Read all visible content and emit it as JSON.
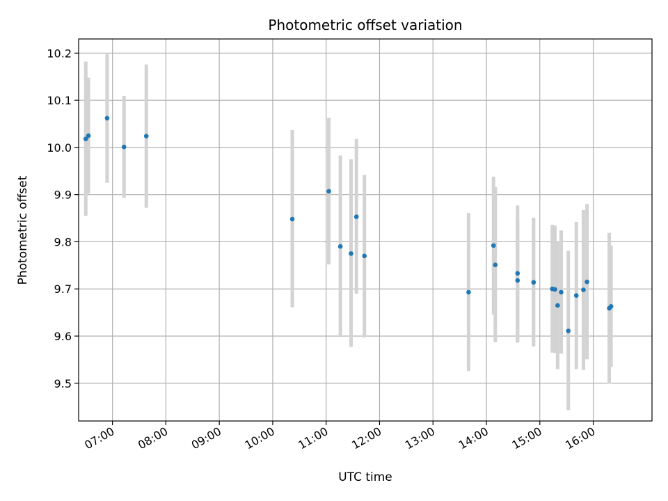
{
  "chart_data": {
    "type": "scatter",
    "title": "Photometric offset variation",
    "xlabel": "UTC time",
    "ylabel": "Photometric offset",
    "grid": true,
    "legend": "none",
    "x_tick_labels": [
      "07:00",
      "08:00",
      "09:00",
      "10:00",
      "11:00",
      "12:00",
      "13:00",
      "14:00",
      "15:00",
      "16:00"
    ],
    "y_tick_labels": [
      "9.5",
      "9.6",
      "9.7",
      "9.8",
      "9.9",
      "10.0",
      "10.1",
      "10.2"
    ],
    "xlim": [
      "06:22",
      "17:06"
    ],
    "ylim": [
      9.42,
      10.23
    ],
    "colors": {
      "point": "#1f77b4",
      "errorbar": "#d3d3d3",
      "grid": "#b0b0b0"
    },
    "points": [
      {
        "x": "06:30",
        "y": 10.018,
        "yerr_low": 9.855,
        "yerr_high": 10.182
      },
      {
        "x": "06:33",
        "y": 10.025,
        "yerr_low": 9.902,
        "yerr_high": 10.148
      },
      {
        "x": "06:54",
        "y": 10.062,
        "yerr_low": 9.925,
        "yerr_high": 10.198
      },
      {
        "x": "07:13",
        "y": 10.001,
        "yerr_low": 9.893,
        "yerr_high": 10.109
      },
      {
        "x": "07:38",
        "y": 10.024,
        "yerr_low": 9.872,
        "yerr_high": 10.176
      },
      {
        "x": "10:22",
        "y": 9.848,
        "yerr_low": 9.661,
        "yerr_high": 10.037
      },
      {
        "x": "11:03",
        "y": 9.907,
        "yerr_low": 9.752,
        "yerr_high": 10.063
      },
      {
        "x": "11:16",
        "y": 9.79,
        "yerr_low": 9.6,
        "yerr_high": 9.983
      },
      {
        "x": "11:28",
        "y": 9.775,
        "yerr_low": 9.577,
        "yerr_high": 9.975
      },
      {
        "x": "11:34",
        "y": 9.853,
        "yerr_low": 9.69,
        "yerr_high": 10.018
      },
      {
        "x": "11:43",
        "y": 9.77,
        "yerr_low": 9.597,
        "yerr_high": 9.942
      },
      {
        "x": "13:40",
        "y": 9.693,
        "yerr_low": 9.526,
        "yerr_high": 9.861
      },
      {
        "x": "14:08",
        "y": 9.792,
        "yerr_low": 9.646,
        "yerr_high": 9.938
      },
      {
        "x": "14:10",
        "y": 9.751,
        "yerr_low": 9.587,
        "yerr_high": 9.916
      },
      {
        "x": "14:35",
        "y": 9.733,
        "yerr_low": 9.59,
        "yerr_high": 9.877
      },
      {
        "x": "14:35",
        "y": 9.718,
        "yerr_low": 9.586,
        "yerr_high": 9.849
      },
      {
        "x": "14:53",
        "y": 9.714,
        "yerr_low": 9.578,
        "yerr_high": 9.851
      },
      {
        "x": "15:14",
        "y": 9.7,
        "yerr_low": 9.565,
        "yerr_high": 9.836
      },
      {
        "x": "15:17",
        "y": 9.699,
        "yerr_low": 9.564,
        "yerr_high": 9.834
      },
      {
        "x": "15:20",
        "y": 9.665,
        "yerr_low": 9.53,
        "yerr_high": 9.8
      },
      {
        "x": "15:24",
        "y": 9.693,
        "yerr_low": 9.563,
        "yerr_high": 9.824
      },
      {
        "x": "15:32",
        "y": 9.611,
        "yerr_low": 9.443,
        "yerr_high": 9.781
      },
      {
        "x": "15:41",
        "y": 9.686,
        "yerr_low": 9.53,
        "yerr_high": 9.842
      },
      {
        "x": "15:49",
        "y": 9.698,
        "yerr_low": 9.528,
        "yerr_high": 9.867
      },
      {
        "x": "15:53",
        "y": 9.715,
        "yerr_low": 9.551,
        "yerr_high": 9.88
      },
      {
        "x": "16:18",
        "y": 9.659,
        "yerr_low": 9.499,
        "yerr_high": 9.819
      },
      {
        "x": "16:20",
        "y": 9.663,
        "yerr_low": 9.535,
        "yerr_high": 9.792
      }
    ]
  }
}
